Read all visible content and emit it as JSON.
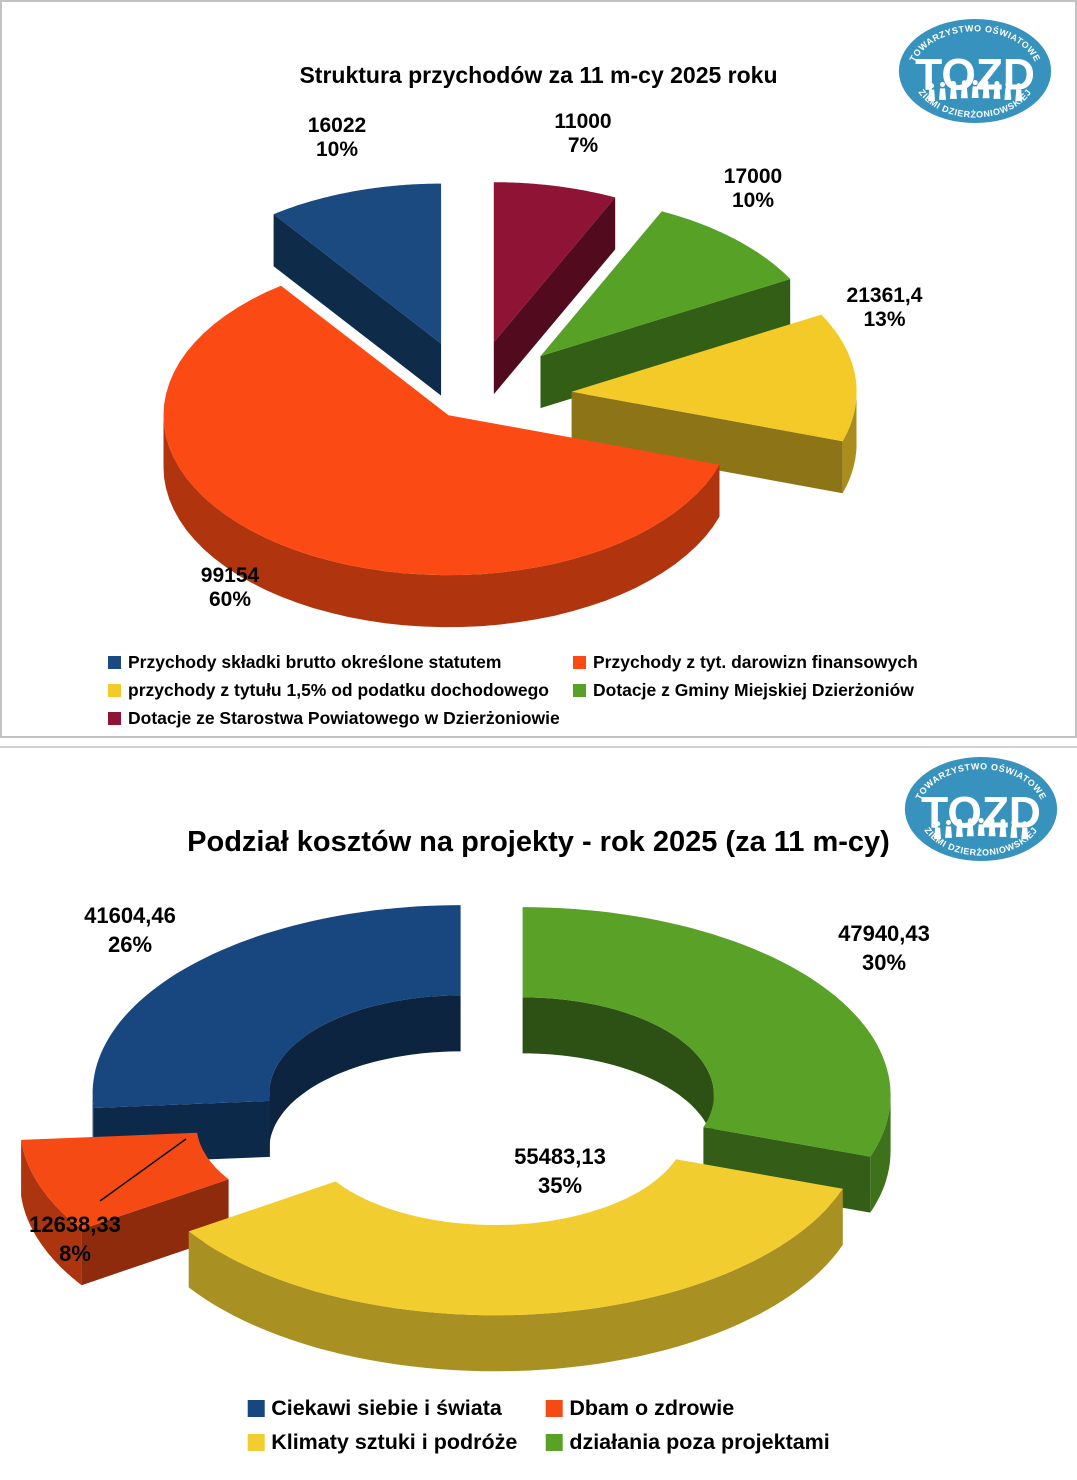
{
  "logo": {
    "top_text": "TOWARZYSTWO OŚWIATOWE",
    "acronym": "TOZD",
    "bottom_text": "ZIEMI DZIERŻONIOWSKIEJ",
    "color": "#3793bd"
  },
  "chart_data": [
    {
      "type": "pie",
      "style": "3d-exploded-pie",
      "title": "Struktura przychodów za 11 m-cy 2025 roku",
      "legend_position": "bottom",
      "slices": [
        {
          "label": "Przychody składki brutto określone statutem",
          "value": 16022,
          "value_label": "16022",
          "pct": 10,
          "pct_label": "10%",
          "color": "#1a4a80"
        },
        {
          "label": "Przychody z tyt. darowizn finansowych",
          "value": 99154,
          "value_label": "99154",
          "pct": 60,
          "pct_label": "60%",
          "color": "#fb4a13"
        },
        {
          "label": "przychody z tytułu 1,5% od podatku dochodowego",
          "value": 21361.4,
          "value_label": "21361,4",
          "pct": 13,
          "pct_label": "13%",
          "color": "#f3ca28"
        },
        {
          "label": "Dotacje z Gminy Miejskiej Dzierżoniów",
          "value": 17000,
          "value_label": "17000",
          "pct": 10,
          "pct_label": "10%",
          "color": "#57a226"
        },
        {
          "label": "Dotacje ze Starostwa Powiatowego w Dzierżoniowie",
          "value": 11000,
          "value_label": "11000",
          "pct": 7,
          "pct_label": "7%",
          "color": "#8e1334"
        }
      ]
    },
    {
      "type": "donut",
      "style": "3d-exploded-donut",
      "title": "Podział kosztów na projekty - rok 2025 (za 11 m-cy)",
      "legend_position": "bottom",
      "slices": [
        {
          "label": "Ciekawi siebie i świata",
          "value": 41604.46,
          "value_label": "41604,46",
          "pct": 26,
          "pct_label": "26%",
          "color": "#17477e"
        },
        {
          "label": "Dbam o zdrowie",
          "value": 12638.33,
          "value_label": "12638,33",
          "pct": 8,
          "pct_label": "8%",
          "color": "#f54a14"
        },
        {
          "label": "Klimaty sztuki i podróże",
          "value": 55483.13,
          "value_label": "55483,13",
          "pct": 35,
          "pct_label": "35%",
          "color": "#f2cd30"
        },
        {
          "label": "działania poza projektami",
          "value": 47940.43,
          "value_label": "47940,43",
          "pct": 30,
          "pct_label": "30%",
          "color": "#5aa127"
        }
      ]
    }
  ]
}
